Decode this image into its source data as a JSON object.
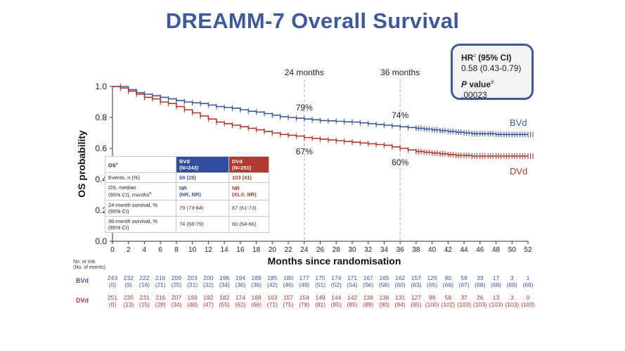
{
  "title": "DREAMM-7 Overall Survival",
  "hr_box": {
    "hr_label": "HR",
    "hr_sup": "c",
    "hr_ci_label": " (95% CI)",
    "hr_value": "0.58 (0.43-0.79)",
    "p_label": "P",
    "p_label_rest": " value",
    "p_sup": "d",
    "p_value": ".00023"
  },
  "table": {
    "header": {
      "label": "OS",
      "label_sup": "a",
      "bvd": "BVd\n(N=243)",
      "dvd": "DVd\n(N=251)"
    },
    "rows": [
      {
        "label": "Events, n (%)",
        "bvd": "68 (28)",
        "dvd": "103 (41)"
      },
      {
        "label": "OS, median\n(95% CI), months",
        "label_sup": "b",
        "bvd": "NR\n(NR, NR)",
        "dvd": "NR\n(41.0, NR)"
      },
      {
        "label": "24-month survival, %\n(95% CI)",
        "bvd": "79 (73-84)",
        "dvd": "67 (61-73)"
      },
      {
        "label": "36-month survival, %\n(95% CI)",
        "bvd": "74 (68-79)",
        "dvd": "60 (54-66)"
      }
    ]
  },
  "chart_data": {
    "type": "line",
    "step": true,
    "xlabel": "Months since randomisation",
    "ylabel": "OS probability",
    "xlim": [
      0,
      52
    ],
    "ylim": [
      0,
      1
    ],
    "x_ticks": [
      0,
      2,
      4,
      6,
      8,
      10,
      12,
      14,
      16,
      18,
      20,
      22,
      24,
      26,
      28,
      30,
      32,
      34,
      36,
      38,
      40,
      42,
      44,
      46,
      48,
      50,
      52
    ],
    "y_ticks": [
      "0.0",
      "0.2",
      "0.4",
      "0.6",
      "0.8",
      "1.0"
    ],
    "reference_lines": [
      {
        "x": 24,
        "label": "24 months"
      },
      {
        "x": 36,
        "label": "36 months"
      }
    ],
    "annotations": [
      {
        "x": 24,
        "y": 0.79,
        "text": "79%",
        "position": "above"
      },
      {
        "x": 36,
        "y": 0.74,
        "text": "74%",
        "position": "above"
      },
      {
        "x": 24,
        "y": 0.67,
        "text": "67%",
        "position": "below"
      },
      {
        "x": 36,
        "y": 0.6,
        "text": "60%",
        "position": "below"
      }
    ],
    "series": [
      {
        "name": "BVd",
        "color": "#3f5a9c",
        "x": [
          0,
          1,
          2,
          3,
          4,
          5,
          6,
          7,
          8,
          9,
          10,
          11,
          12,
          13,
          14,
          15,
          16,
          17,
          18,
          19,
          20,
          21,
          22,
          23,
          24,
          25,
          26,
          27,
          28,
          29,
          30,
          31,
          32,
          33,
          34,
          35,
          36,
          37,
          38,
          39,
          40,
          41,
          42,
          43,
          44,
          45,
          46,
          47,
          48,
          49,
          50,
          51,
          52
        ],
        "y": [
          1.0,
          1.0,
          0.98,
          0.96,
          0.95,
          0.94,
          0.93,
          0.92,
          0.91,
          0.9,
          0.895,
          0.89,
          0.88,
          0.87,
          0.865,
          0.86,
          0.85,
          0.84,
          0.835,
          0.825,
          0.815,
          0.805,
          0.8,
          0.795,
          0.79,
          0.785,
          0.78,
          0.778,
          0.775,
          0.772,
          0.77,
          0.765,
          0.76,
          0.755,
          0.75,
          0.745,
          0.74,
          0.735,
          0.73,
          0.725,
          0.72,
          0.715,
          0.71,
          0.705,
          0.7,
          0.695,
          0.695,
          0.695,
          0.69,
          0.69,
          0.69,
          0.69,
          0.69
        ]
      },
      {
        "name": "DVd",
        "color": "#b03a2e",
        "x": [
          0,
          1,
          2,
          3,
          4,
          5,
          6,
          7,
          8,
          9,
          10,
          11,
          12,
          13,
          14,
          15,
          16,
          17,
          18,
          19,
          20,
          21,
          22,
          23,
          24,
          25,
          26,
          27,
          28,
          29,
          30,
          31,
          32,
          33,
          34,
          35,
          36,
          37,
          38,
          39,
          40,
          41,
          42,
          43,
          44,
          45,
          46,
          47,
          48,
          49,
          50,
          51,
          52
        ],
        "y": [
          1.0,
          0.99,
          0.97,
          0.95,
          0.93,
          0.92,
          0.9,
          0.89,
          0.87,
          0.85,
          0.83,
          0.81,
          0.79,
          0.77,
          0.76,
          0.75,
          0.74,
          0.73,
          0.72,
          0.71,
          0.7,
          0.69,
          0.685,
          0.68,
          0.67,
          0.665,
          0.66,
          0.655,
          0.65,
          0.645,
          0.64,
          0.635,
          0.63,
          0.625,
          0.62,
          0.61,
          0.6,
          0.59,
          0.58,
          0.575,
          0.57,
          0.565,
          0.56,
          0.555,
          0.555,
          0.55,
          0.55,
          0.55,
          0.55,
          0.55,
          0.55,
          0.55,
          0.55
        ]
      }
    ],
    "at_risk": {
      "title_line1": "No. at risk",
      "title_line2": "(No. of events)",
      "rows": [
        {
          "name": "BVd",
          "color": "#3f5a9c",
          "n": [
            "243",
            "232",
            "222",
            "216",
            "209",
            "203",
            "200",
            "196",
            "194",
            "189",
            "185",
            "180",
            "177",
            "175",
            "174",
            "171",
            "167",
            "165",
            "162",
            "157",
            "126",
            "90",
            "58",
            "33",
            "17",
            "3",
            "1"
          ],
          "events": [
            "(0)",
            "(9)",
            "(16)",
            "(21)",
            "(25)",
            "(31)",
            "(32)",
            "(34)",
            "(36)",
            "(38)",
            "(42)",
            "(46)",
            "(49)",
            "(51)",
            "(52)",
            "(54)",
            "(56)",
            "(58)",
            "(60)",
            "(63)",
            "(65)",
            "(66)",
            "(67)",
            "(68)",
            "(68)",
            "(68)",
            "(68)"
          ]
        },
        {
          "name": "DVd",
          "color": "#b03a2e",
          "n": [
            "251",
            "235",
            "231",
            "216",
            "207",
            "199",
            "192",
            "182",
            "174",
            "169",
            "163",
            "157",
            "154",
            "149",
            "144",
            "142",
            "138",
            "136",
            "131",
            "127",
            "99",
            "58",
            "37",
            "26",
            "13",
            "3",
            "0"
          ],
          "events": [
            "(0)",
            "(13)",
            "(15)",
            "(28)",
            "(34)",
            "(40)",
            "(47)",
            "(55)",
            "(62)",
            "(66)",
            "(71)",
            "(75)",
            "(78)",
            "(81)",
            "(85)",
            "(85)",
            "(89)",
            "(90)",
            "(94)",
            "(95)",
            "(100)",
            "(102)",
            "(103)",
            "(103)",
            "(103)",
            "(103)",
            "(103)"
          ]
        }
      ]
    }
  }
}
